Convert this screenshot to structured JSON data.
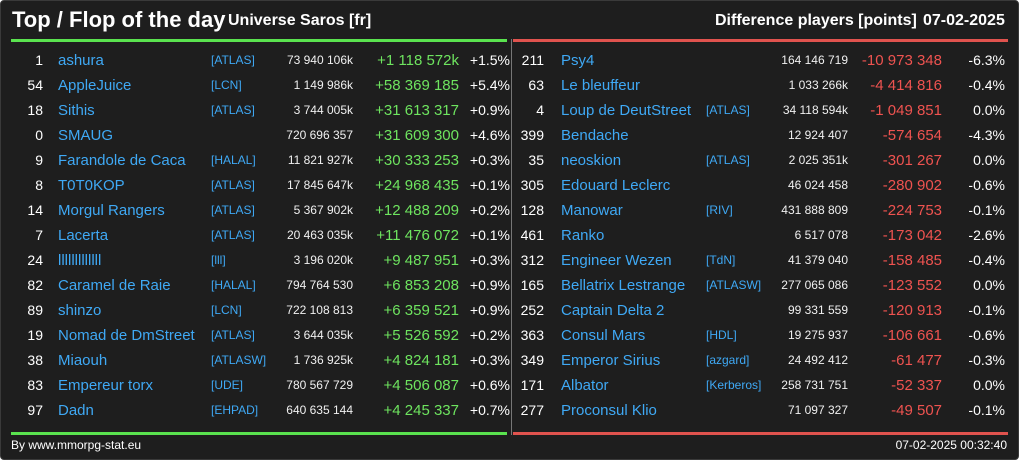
{
  "header": {
    "title": "Top / Flop of the day",
    "universe": "Universe Saros [fr]",
    "metric": "Difference players [points]",
    "date": "07-02-2025"
  },
  "colors": {
    "positive": "#6ee45f",
    "negative": "#ef5350",
    "link": "#3fa9f5",
    "background": "#1e1e1e"
  },
  "top": [
    {
      "rank": "1",
      "name": "ashura",
      "alliance": "[ATLAS]",
      "score": "73 940 106k",
      "delta": "+1 118 572k",
      "pct": "+1.5%"
    },
    {
      "rank": "54",
      "name": "AppleJuice",
      "alliance": "[LCN]",
      "score": "1 149 986k",
      "delta": "+58 369 185",
      "pct": "+5.4%"
    },
    {
      "rank": "18",
      "name": "Sithis",
      "alliance": "[ATLAS]",
      "score": "3 744 005k",
      "delta": "+31 613 317",
      "pct": "+0.9%"
    },
    {
      "rank": "0",
      "name": "SMAUG",
      "alliance": "",
      "score": "720 696 357",
      "delta": "+31 609 300",
      "pct": "+4.6%"
    },
    {
      "rank": "9",
      "name": "Farandole de Caca",
      "alliance": "[HALAL]",
      "score": "11 821 927k",
      "delta": "+30 333 253",
      "pct": "+0.3%"
    },
    {
      "rank": "8",
      "name": "T0T0KOP",
      "alliance": "[ATLAS]",
      "score": "17 845 647k",
      "delta": "+24 968 435",
      "pct": "+0.1%"
    },
    {
      "rank": "14",
      "name": "Morgul Rangers",
      "alliance": "[ATLAS]",
      "score": "5 367 902k",
      "delta": "+12 488 209",
      "pct": "+0.2%"
    },
    {
      "rank": "7",
      "name": "Lacerta",
      "alliance": "[ATLAS]",
      "score": "20 463 035k",
      "delta": "+11 476 072",
      "pct": "+0.1%"
    },
    {
      "rank": "24",
      "name": "lllllllllllll",
      "alliance": "[lll]",
      "score": "3 196 020k",
      "delta": "+9 487 951",
      "pct": "+0.3%"
    },
    {
      "rank": "82",
      "name": "Caramel de Raie",
      "alliance": "[HALAL]",
      "score": "794 764 530",
      "delta": "+6 853 208",
      "pct": "+0.9%"
    },
    {
      "rank": "89",
      "name": "shinzo",
      "alliance": "[LCN]",
      "score": "722 108 813",
      "delta": "+6 359 521",
      "pct": "+0.9%"
    },
    {
      "rank": "19",
      "name": "Nomad de DmStreet",
      "alliance": "[ATLAS]",
      "score": "3 644 035k",
      "delta": "+5 526 592",
      "pct": "+0.2%"
    },
    {
      "rank": "38",
      "name": "Miaouh",
      "alliance": "[ATLASW]",
      "score": "1 736 925k",
      "delta": "+4 824 181",
      "pct": "+0.3%"
    },
    {
      "rank": "83",
      "name": "Empereur torx",
      "alliance": "[UDE]",
      "score": "780 567 729",
      "delta": "+4 506 087",
      "pct": "+0.6%"
    },
    {
      "rank": "97",
      "name": "Dadn",
      "alliance": "[EHPAD]",
      "score": "640 635 144",
      "delta": "+4 245 337",
      "pct": "+0.7%"
    }
  ],
  "flop": [
    {
      "rank": "211",
      "name": "Psy4",
      "alliance": "",
      "score": "164 146 719",
      "delta": "-10 973 348",
      "pct": "-6.3%"
    },
    {
      "rank": "63",
      "name": "Le bleuffeur",
      "alliance": "",
      "score": "1 033 266k",
      "delta": "-4 414 816",
      "pct": "-0.4%"
    },
    {
      "rank": "4",
      "name": "Loup de DeutStreet",
      "alliance": "[ATLAS]",
      "score": "34 118 594k",
      "delta": "-1 049 851",
      "pct": "0.0%"
    },
    {
      "rank": "399",
      "name": "Bendache",
      "alliance": "",
      "score": "12 924 407",
      "delta": "-574 654",
      "pct": "-4.3%"
    },
    {
      "rank": "35",
      "name": "neoskion",
      "alliance": "[ATLAS]",
      "score": "2 025 351k",
      "delta": "-301 267",
      "pct": "0.0%"
    },
    {
      "rank": "305",
      "name": "Edouard Leclerc",
      "alliance": "",
      "score": "46 024 458",
      "delta": "-280 902",
      "pct": "-0.6%"
    },
    {
      "rank": "128",
      "name": "Manowar",
      "alliance": "[RIV]",
      "score": "431 888 809",
      "delta": "-224 753",
      "pct": "-0.1%"
    },
    {
      "rank": "461",
      "name": "Ranko",
      "alliance": "",
      "score": "6 517 078",
      "delta": "-173 042",
      "pct": "-2.6%"
    },
    {
      "rank": "312",
      "name": "Engineer Wezen",
      "alliance": "[TdN]",
      "score": "41 379 040",
      "delta": "-158 485",
      "pct": "-0.4%"
    },
    {
      "rank": "165",
      "name": "Bellatrix Lestrange",
      "alliance": "[ATLASW]",
      "score": "277 065 086",
      "delta": "-123 552",
      "pct": "0.0%"
    },
    {
      "rank": "252",
      "name": "Captain Delta 2",
      "alliance": "",
      "score": "99 331 559",
      "delta": "-120 913",
      "pct": "-0.1%"
    },
    {
      "rank": "363",
      "name": "Consul Mars",
      "alliance": "[HDL]",
      "score": "19 275 937",
      "delta": "-106 661",
      "pct": "-0.6%"
    },
    {
      "rank": "349",
      "name": "Emperor Sirius",
      "alliance": "[azgard]",
      "score": "24 492 412",
      "delta": "-61 477",
      "pct": "-0.3%"
    },
    {
      "rank": "171",
      "name": "Albator",
      "alliance": "[Kerberos]",
      "score": "258 731 751",
      "delta": "-52 337",
      "pct": "0.0%"
    },
    {
      "rank": "277",
      "name": "Proconsul Klio",
      "alliance": "",
      "score": "71 097 327",
      "delta": "-49 507",
      "pct": "-0.1%"
    }
  ],
  "footer": {
    "credit": "By www.mmorpg-stat.eu",
    "timestamp": "07-02-2025 00:32:40"
  }
}
